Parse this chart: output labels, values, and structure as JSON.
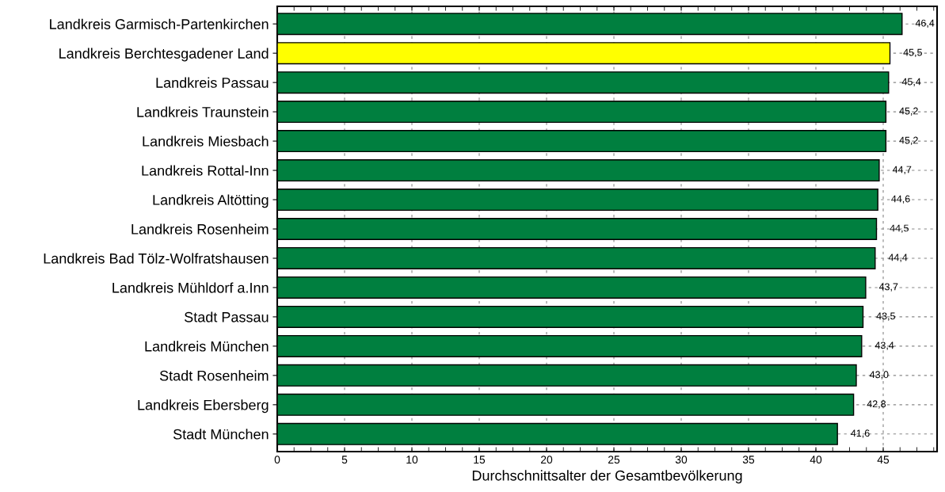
{
  "chart_data": {
    "type": "bar",
    "orientation": "horizontal",
    "xlabel": "Durchschnittsalter der Gesamtbevölkerung",
    "categories": [
      "Landkreis Garmisch-Partenkirchen",
      "Landkreis Berchtesgadener Land",
      "Landkreis Passau",
      "Landkreis Traunstein",
      "Landkreis Miesbach",
      "Landkreis Rottal-Inn",
      "Landkreis Altötting",
      "Landkreis Rosenheim",
      "Landkreis Bad Tölz-Wolfratshausen",
      "Landkreis Mühldorf a.Inn",
      "Stadt Passau",
      "Landkreis München",
      "Stadt Rosenheim",
      "Landkreis Ebersberg",
      "Stadt München"
    ],
    "values": [
      46.4,
      45.5,
      45.4,
      45.2,
      45.2,
      44.7,
      44.6,
      44.5,
      44.4,
      43.7,
      43.5,
      43.4,
      43.0,
      42.8,
      41.6
    ],
    "value_labels": [
      "46,4",
      "45,5",
      "45,4",
      "45,2",
      "45,2",
      "44,7",
      "44,6",
      "44,5",
      "44,4",
      "43,7",
      "43,5",
      "43,4",
      "43,0",
      "42,8",
      "41,6"
    ],
    "colors": [
      "#007f3f",
      "#ffff00",
      "#007f3f",
      "#007f3f",
      "#007f3f",
      "#007f3f",
      "#007f3f",
      "#007f3f",
      "#007f3f",
      "#007f3f",
      "#007f3f",
      "#007f3f",
      "#007f3f",
      "#007f3f",
      "#007f3f"
    ],
    "xlim": [
      0,
      49
    ],
    "xticks": [
      0,
      5,
      10,
      15,
      20,
      25,
      30,
      35,
      40,
      45
    ],
    "grid": true
  }
}
